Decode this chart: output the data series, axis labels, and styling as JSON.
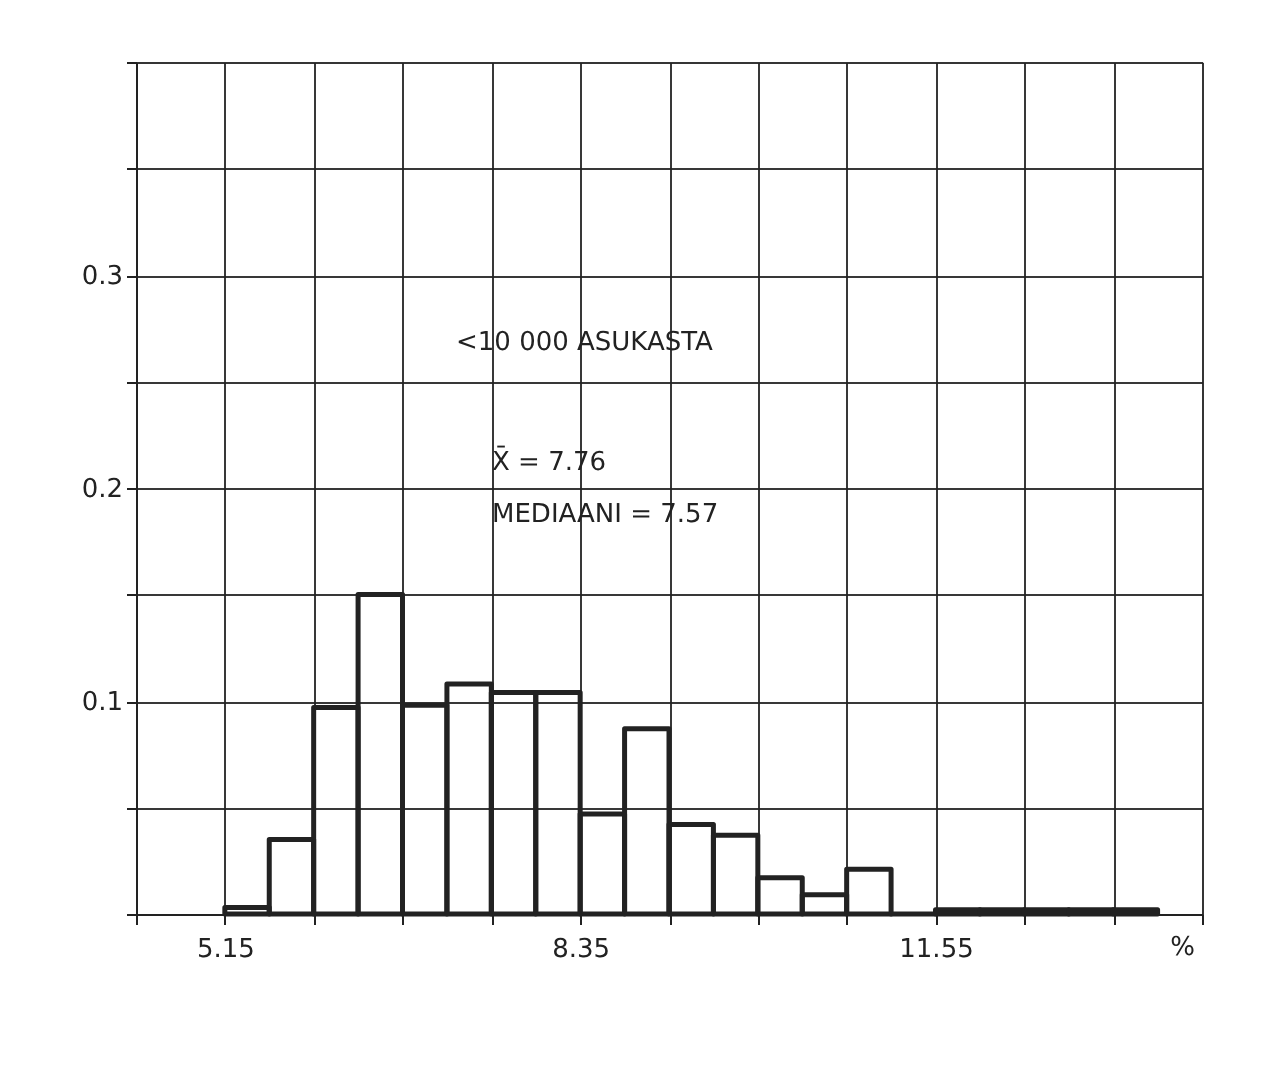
{
  "chart_data": {
    "type": "histogram",
    "bins": [
      5.15,
      5.55,
      5.95,
      6.35,
      6.75,
      7.15,
      7.55,
      7.95,
      8.35,
      8.75,
      9.15,
      9.55,
      9.95,
      10.35,
      10.75,
      11.15,
      11.55,
      11.95,
      12.35,
      12.75,
      13.15,
      13.55
    ],
    "values": [
      0.003,
      0.035,
      0.097,
      0.15,
      0.098,
      0.108,
      0.104,
      0.104,
      0.047,
      0.087,
      0.042,
      0.037,
      0.017,
      0.009,
      0.021,
      0,
      0.002,
      0.002,
      0.002,
      0.002,
      0.002
    ],
    "color": "#222222",
    "xlabel": "%",
    "xlim": [
      4.35,
      13.95
    ],
    "xticks": [
      {
        "value": 4.35,
        "label": null
      },
      5.15,
      {
        "value": 5.95,
        "label": null
      },
      {
        "value": 6.75,
        "label": null
      },
      {
        "value": 7.55,
        "label": null
      },
      8.35,
      {
        "value": 9.15,
        "label": null
      },
      {
        "value": 9.95,
        "label": null
      },
      {
        "value": 10.75,
        "label": null
      },
      11.55,
      {
        "value": 12.35,
        "label": null
      },
      {
        "value": 13.15,
        "label": null
      },
      {
        "value": 13.95,
        "label": null
      }
    ],
    "ylim": [
      0,
      0.4
    ],
    "yticks": [
      {
        "value": 0,
        "label": null
      },
      {
        "value": 0.05,
        "label": null
      },
      0.1,
      {
        "value": 0.15,
        "label": null
      },
      0.2,
      {
        "value": 0.25,
        "label": null
      },
      0.3,
      {
        "value": 0.35,
        "label": null
      },
      {
        "value": 0.4,
        "label": null
      }
    ],
    "grid": true,
    "annotations": [
      "<10 000  ASUKASTA",
      "X̄ = 7.76",
      "MEDIAANI = 7.57"
    ]
  }
}
